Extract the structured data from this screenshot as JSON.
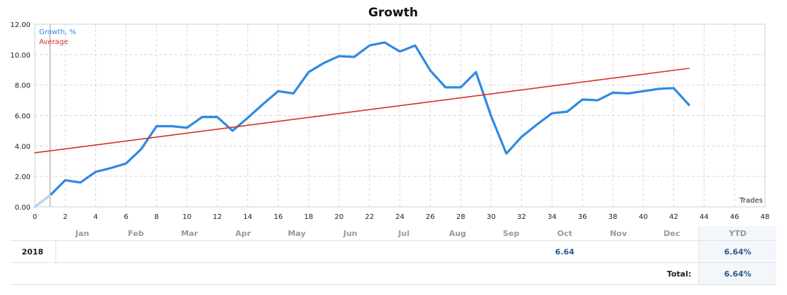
{
  "chart_data": {
    "type": "line",
    "title": "Growth",
    "x_axis_note": "Trades",
    "xlim": [
      0,
      48
    ],
    "ylim": [
      0,
      12
    ],
    "x_ticks": [
      0,
      2,
      4,
      6,
      8,
      10,
      12,
      14,
      16,
      18,
      20,
      22,
      24,
      26,
      28,
      30,
      32,
      34,
      36,
      38,
      40,
      42,
      44,
      46,
      48
    ],
    "y_ticks": [
      "0.00",
      "2.00",
      "4.00",
      "6.00",
      "8.00",
      "10.00",
      "12.00"
    ],
    "grid": true,
    "legend_position": "top-left",
    "series": [
      {
        "name": "Growth, %",
        "color": "#2f8ae0",
        "x": [
          0,
          1,
          2,
          3,
          4,
          5,
          6,
          7,
          8,
          9,
          10,
          11,
          12,
          13,
          14,
          15,
          16,
          17,
          18,
          19,
          20,
          21,
          22,
          23,
          24,
          25,
          26,
          27,
          28,
          29,
          30,
          31,
          32,
          33,
          34,
          35,
          36,
          37,
          38,
          39,
          40,
          41,
          42,
          43
        ],
        "values": [
          0,
          0.75,
          1.75,
          1.6,
          2.3,
          2.55,
          2.85,
          3.8,
          5.3,
          5.3,
          5.2,
          5.9,
          5.9,
          5.0,
          5.85,
          6.75,
          7.6,
          7.45,
          8.85,
          9.45,
          9.9,
          9.85,
          10.6,
          10.8,
          10.2,
          10.6,
          8.95,
          7.85,
          7.85,
          8.85,
          5.95,
          3.5,
          4.6,
          5.4,
          6.15,
          6.25,
          7.05,
          7.0,
          7.5,
          7.45,
          7.6,
          7.75,
          7.8,
          6.7
        ]
      },
      {
        "name": "Average",
        "color": "#d9302a",
        "x": [
          0,
          43
        ],
        "values": [
          3.55,
          9.1
        ]
      }
    ]
  },
  "table": {
    "months": [
      "Jan",
      "Feb",
      "Mar",
      "Apr",
      "May",
      "Jun",
      "Jul",
      "Aug",
      "Sep",
      "Oct",
      "Nov",
      "Dec"
    ],
    "ytd_header": "YTD",
    "year": "2018",
    "month_values": [
      "",
      "",
      "",
      "",
      "",
      "",
      "",
      "",
      "",
      "6.64",
      "",
      ""
    ],
    "ytd_value": "6.64%",
    "total_label": "Total:",
    "total_value": "6.64%"
  }
}
